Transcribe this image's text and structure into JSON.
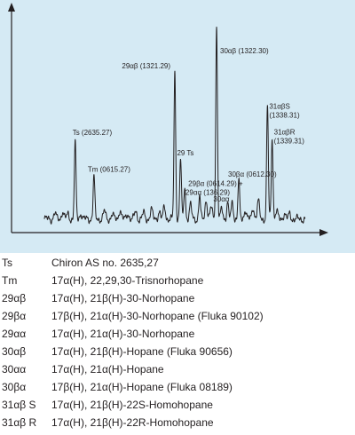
{
  "colors": {
    "panel": "#d5eaf4",
    "trace": "#231f20",
    "text": "#231f20"
  },
  "chart_data": {
    "type": "line",
    "title": "",
    "xlabel": "",
    "ylabel": "",
    "ylim": [
      0,
      100
    ],
    "xlim": [
      0,
      100
    ],
    "grid": false,
    "peaks": [
      {
        "id": "ts",
        "label": "Ts (2635.27)",
        "x": 11.8,
        "height": 39
      },
      {
        "id": "tm",
        "label": "Tm (0615.27)",
        "x": 19.0,
        "height": 22
      },
      {
        "id": "n29ab",
        "label": "29αβ (1321.29)",
        "x": 50.0,
        "height": 75
      },
      {
        "id": "t29ts",
        "label": "29 Ts",
        "x": 52.2,
        "height": 31
      },
      {
        "id": "n29ba",
        "label": "29βα (0614.29) +",
        "x": 53.8,
        "height": 17
      },
      {
        "id": "n29aa",
        "label": "29αα (136.29)",
        "x": 59.5,
        "height": 12
      },
      {
        "id": "n30ab",
        "label": "30αβ (1322.30)",
        "x": 66.0,
        "height": 99
      },
      {
        "id": "n30aa",
        "label": "30αα",
        "x": 70.2,
        "height": 9
      },
      {
        "id": "n30ba",
        "label": "30βα (0612.30)",
        "x": 74.5,
        "height": 20
      },
      {
        "id": "n31abs",
        "label": "31αβS\n(1338.31)",
        "x": 85.5,
        "height": 58
      },
      {
        "id": "n31abr",
        "label": "31αβR\n(1339.31)",
        "x": 87.3,
        "height": 42
      }
    ]
  },
  "legend": [
    {
      "code": "Ts",
      "desc": "Chiron AS no. 2635,27"
    },
    {
      "code": "Tm",
      "desc": "17α(H), 22,29,30-Trisnorhopane"
    },
    {
      "code": "29αβ",
      "desc": "17α(H), 21β(H)-30-Norhopane"
    },
    {
      "code": "29βα",
      "desc": "17β(H), 21α(H)-30-Norhopane (Fluka 90102)"
    },
    {
      "code": "29αα",
      "desc": "17α(H), 21α(H)-30-Norhopane"
    },
    {
      "code": "30αβ",
      "desc": "17α(H), 21β(H)-Hopane (Fluka 90656)"
    },
    {
      "code": "30αα",
      "desc": "17α(H), 21α(H)-Hopane"
    },
    {
      "code": "30βα",
      "desc": "17β(H), 21α(H)-Hopane (Fluka 08189)"
    },
    {
      "code": "31αβ S",
      "desc": "17α(H), 21β(H)-22S-Homohopane"
    },
    {
      "code": "31αβ R",
      "desc": "17α(H), 21β(H)-22R-Homohopane"
    }
  ]
}
